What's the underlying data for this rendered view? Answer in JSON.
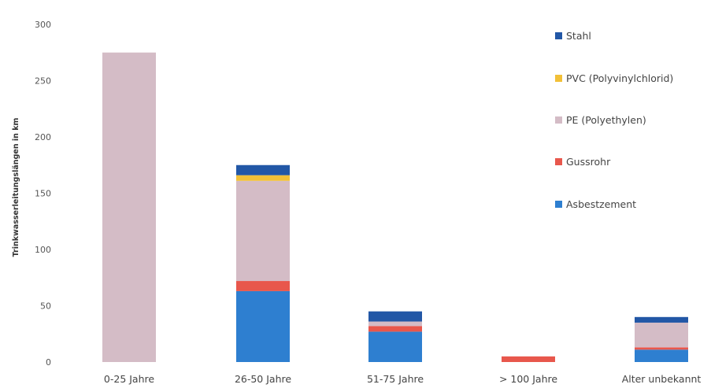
{
  "chart_data": {
    "type": "bar",
    "stacked": true,
    "categories": [
      "0-25 Jahre",
      "26-50 Jahre",
      "51-75 Jahre",
      "> 100 Jahre",
      "Alter unbekannt"
    ],
    "series": [
      {
        "name": "Asbestzement",
        "color": "#2e7fd0",
        "values": [
          0,
          63,
          27,
          0,
          11
        ]
      },
      {
        "name": "Gussrohr",
        "color": "#e8574c",
        "values": [
          0,
          9,
          5,
          5,
          2
        ]
      },
      {
        "name": "PE (Polyethylen)",
        "color": "#d4bcc6",
        "values": [
          275,
          89,
          4,
          0,
          22
        ]
      },
      {
        "name": "PVC (Polyvinylchlorid)",
        "color": "#f2c037",
        "values": [
          0,
          5,
          0,
          0,
          0
        ]
      },
      {
        "name": "Stahl",
        "color": "#2257a6",
        "values": [
          0,
          9,
          9,
          0,
          5
        ]
      }
    ],
    "legend_order": [
      "Stahl",
      "PVC (Polyvinylchlorid)",
      "PE (Polyethylen)",
      "Gussrohr",
      "Asbestzement"
    ],
    "legend_position": "right",
    "title": "",
    "xlabel": "",
    "ylabel": "Trinkwasserleitungslängen in km",
    "ylim": [
      0,
      300
    ],
    "yticks": [
      0,
      50,
      100,
      150,
      200,
      250,
      300
    ],
    "grid": false
  }
}
